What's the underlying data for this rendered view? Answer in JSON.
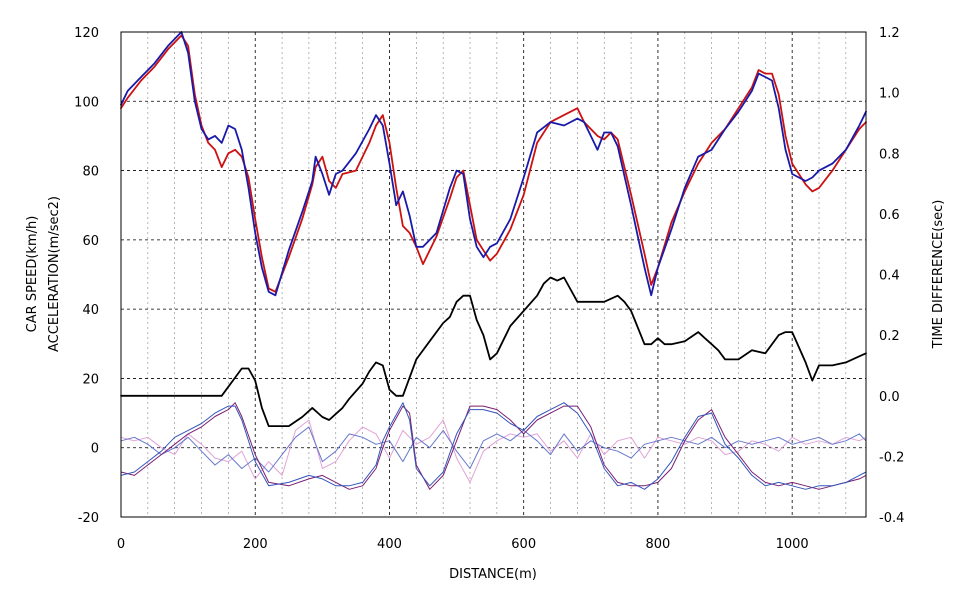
{
  "chart_data": {
    "type": "line",
    "xlabel": "DISTANCE(m)",
    "ylabel_left_line1": "CAR SPEED(km/h)",
    "ylabel_left_line2": "ACCELERATION(m/sec2)",
    "ylabel_right": "TIME DIFFERENCE(sec)",
    "xlim": [
      0,
      1110
    ],
    "ylim_left": [
      -20,
      120
    ],
    "ylim_right": [
      -0.4,
      1.2
    ],
    "x_ticks": [
      0,
      200,
      400,
      600,
      800,
      1000
    ],
    "x_tick_labels": [
      "0",
      "200",
      "400",
      "600",
      "800",
      "1000"
    ],
    "y_left_ticks": [
      -20,
      0,
      20,
      40,
      60,
      80,
      100,
      120
    ],
    "y_left_tick_labels": [
      "-20",
      "0",
      "20",
      "40",
      "60",
      "80",
      "100",
      "120"
    ],
    "y_right_ticks": [
      -0.4,
      -0.2,
      0.0,
      0.2,
      0.4,
      0.6,
      0.8,
      1.0,
      1.2
    ],
    "y_right_tick_labels": [
      "-0.4",
      "-0.2",
      "0.0",
      "0.2",
      "0.4",
      "0.6",
      "0.8",
      "1.0",
      "1.2"
    ],
    "grid": true,
    "legend": "none",
    "series": [
      {
        "color": "#cc1111",
        "axis": "left",
        "x": [
          0,
          10,
          30,
          50,
          70,
          90,
          100,
          110,
          120,
          130,
          140,
          150,
          160,
          170,
          180,
          190,
          200,
          210,
          220,
          230,
          250,
          270,
          285,
          290,
          300,
          310,
          320,
          330,
          350,
          370,
          380,
          390,
          400,
          410,
          420,
          430,
          440,
          450,
          470,
          490,
          500,
          510,
          520,
          530,
          540,
          550,
          560,
          580,
          600,
          620,
          640,
          660,
          680,
          690,
          700,
          710,
          720,
          730,
          740,
          760,
          780,
          790,
          800,
          820,
          840,
          860,
          880,
          900,
          920,
          940,
          950,
          960,
          970,
          980,
          990,
          1000,
          1010,
          1020,
          1030,
          1040,
          1060,
          1080,
          1100,
          1110
        ],
        "values": [
          98,
          101,
          106,
          110,
          115,
          119,
          116,
          102,
          93,
          88,
          86,
          81,
          85,
          86,
          84,
          78,
          66,
          55,
          46,
          45,
          55,
          66,
          76,
          81,
          84,
          77,
          75,
          79,
          80,
          88,
          93,
          96,
          88,
          75,
          64,
          62,
          58,
          53,
          61,
          72,
          78,
          80,
          70,
          60,
          57,
          54,
          56,
          63,
          73,
          88,
          94,
          96,
          98,
          94,
          92,
          90,
          89,
          91,
          89,
          73,
          56,
          47,
          52,
          65,
          74,
          82,
          88,
          92,
          98,
          104,
          109,
          108,
          108,
          102,
          90,
          82,
          79,
          76,
          74,
          75,
          80,
          86,
          92,
          94
        ]
      },
      {
        "color": "#1a1aaa",
        "axis": "left",
        "x": [
          0,
          10,
          30,
          50,
          70,
          90,
          100,
          110,
          120,
          130,
          140,
          150,
          160,
          170,
          180,
          190,
          200,
          210,
          220,
          230,
          250,
          270,
          285,
          290,
          300,
          310,
          320,
          330,
          350,
          370,
          380,
          390,
          400,
          410,
          420,
          430,
          440,
          450,
          470,
          490,
          500,
          510,
          520,
          530,
          540,
          550,
          560,
          580,
          600,
          620,
          640,
          660,
          680,
          690,
          700,
          710,
          720,
          730,
          740,
          760,
          780,
          790,
          800,
          820,
          840,
          860,
          880,
          900,
          920,
          940,
          950,
          960,
          970,
          980,
          990,
          1000,
          1010,
          1020,
          1030,
          1040,
          1060,
          1080,
          1100,
          1110
        ],
        "values": [
          99,
          103,
          107,
          111,
          116,
          120,
          114,
          100,
          92,
          89,
          90,
          88,
          93,
          92,
          86,
          75,
          62,
          52,
          45,
          44,
          57,
          68,
          77,
          84,
          79,
          73,
          79,
          80,
          85,
          92,
          96,
          93,
          82,
          70,
          74,
          67,
          58,
          58,
          62,
          75,
          80,
          79,
          66,
          58,
          55,
          58,
          59,
          66,
          78,
          91,
          94,
          93,
          95,
          94,
          90,
          86,
          91,
          91,
          87,
          70,
          52,
          44,
          52,
          63,
          75,
          84,
          86,
          92,
          97,
          103,
          108,
          107,
          106,
          98,
          86,
          79,
          78,
          77,
          78,
          80,
          82,
          86,
          93,
          97
        ]
      },
      {
        "color": "#000000",
        "axis": "right",
        "x": [
          0,
          20,
          50,
          100,
          140,
          150,
          160,
          170,
          180,
          190,
          200,
          210,
          220,
          250,
          270,
          285,
          300,
          310,
          320,
          330,
          340,
          360,
          370,
          380,
          390,
          400,
          410,
          420,
          430,
          440,
          460,
          480,
          490,
          500,
          510,
          520,
          530,
          540,
          550,
          560,
          580,
          600,
          620,
          630,
          640,
          650,
          660,
          680,
          700,
          720,
          740,
          750,
          760,
          780,
          790,
          800,
          810,
          820,
          840,
          860,
          870,
          880,
          890,
          900,
          920,
          940,
          960,
          980,
          990,
          1000,
          1010,
          1020,
          1030,
          1040,
          1060,
          1080,
          1100,
          1110
        ],
        "values": [
          0.0,
          0.0,
          0.0,
          0.0,
          0.0,
          0.0,
          0.03,
          0.06,
          0.09,
          0.09,
          0.05,
          -0.04,
          -0.1,
          -0.1,
          -0.07,
          -0.04,
          -0.07,
          -0.08,
          -0.06,
          -0.04,
          -0.01,
          0.04,
          0.08,
          0.11,
          0.1,
          0.02,
          0.0,
          0.0,
          0.06,
          0.12,
          0.18,
          0.24,
          0.26,
          0.31,
          0.33,
          0.33,
          0.25,
          0.2,
          0.12,
          0.14,
          0.23,
          0.28,
          0.33,
          0.37,
          0.39,
          0.38,
          0.39,
          0.31,
          0.31,
          0.31,
          0.33,
          0.31,
          0.28,
          0.17,
          0.17,
          0.19,
          0.17,
          0.17,
          0.18,
          0.21,
          0.19,
          0.17,
          0.15,
          0.12,
          0.12,
          0.15,
          0.14,
          0.2,
          0.21,
          0.21,
          0.16,
          0.11,
          0.05,
          0.1,
          0.1,
          0.11,
          0.13,
          0.14
        ]
      },
      {
        "color": "#7a1f70",
        "axis": "left",
        "x": [
          0,
          20,
          40,
          60,
          80,
          100,
          120,
          140,
          160,
          170,
          180,
          200,
          220,
          250,
          280,
          300,
          320,
          340,
          360,
          380,
          390,
          400,
          420,
          430,
          440,
          460,
          480,
          500,
          520,
          540,
          560,
          580,
          600,
          620,
          640,
          660,
          680,
          700,
          720,
          740,
          760,
          780,
          800,
          820,
          840,
          860,
          880,
          900,
          920,
          940,
          960,
          980,
          1000,
          1020,
          1040,
          1060,
          1080,
          1100,
          1110
        ],
        "values": [
          -7,
          -8,
          -5,
          -2,
          1,
          4,
          6,
          9,
          11,
          13,
          9,
          -2,
          -10,
          -11,
          -9,
          -8,
          -10,
          -12,
          -11,
          -6,
          0,
          5,
          12,
          10,
          -5,
          -12,
          -8,
          2,
          12,
          12,
          11,
          8,
          4,
          8,
          10,
          12,
          12,
          6,
          -5,
          -10,
          -11,
          -11,
          -10,
          -6,
          2,
          8,
          11,
          3,
          -2,
          -7,
          -10,
          -11,
          -10,
          -11,
          -12,
          -11,
          -10,
          -9,
          -8
        ]
      },
      {
        "color": "#3355bb",
        "axis": "left",
        "x": [
          0,
          20,
          40,
          60,
          80,
          100,
          120,
          140,
          160,
          170,
          180,
          200,
          220,
          250,
          280,
          300,
          320,
          340,
          360,
          380,
          390,
          400,
          420,
          430,
          440,
          460,
          480,
          500,
          520,
          540,
          560,
          580,
          600,
          620,
          640,
          660,
          680,
          700,
          720,
          740,
          760,
          780,
          800,
          820,
          840,
          860,
          880,
          900,
          920,
          940,
          960,
          980,
          1000,
          1020,
          1040,
          1060,
          1080,
          1100,
          1110
        ],
        "values": [
          -8,
          -7,
          -4,
          -1,
          3,
          5,
          7,
          10,
          12,
          12,
          8,
          -4,
          -11,
          -10,
          -8,
          -9,
          -11,
          -11,
          -10,
          -5,
          2,
          6,
          13,
          8,
          -6,
          -11,
          -7,
          4,
          11,
          11,
          10,
          7,
          5,
          9,
          11,
          13,
          10,
          4,
          -6,
          -11,
          -10,
          -12,
          -9,
          -4,
          3,
          9,
          10,
          1,
          -3,
          -8,
          -11,
          -10,
          -11,
          -12,
          -11,
          -11,
          -10,
          -8,
          -7
        ]
      },
      {
        "color": "#e2a2d6",
        "axis": "left",
        "x": [
          0,
          20,
          40,
          60,
          80,
          100,
          120,
          140,
          160,
          180,
          200,
          220,
          240,
          260,
          280,
          300,
          320,
          340,
          360,
          380,
          400,
          420,
          440,
          460,
          480,
          500,
          520,
          540,
          560,
          580,
          600,
          620,
          640,
          660,
          680,
          700,
          720,
          740,
          760,
          780,
          800,
          820,
          840,
          860,
          880,
          900,
          920,
          940,
          960,
          980,
          1000,
          1020,
          1040,
          1060,
          1080,
          1100,
          1110
        ],
        "values": [
          3,
          2,
          3,
          0,
          -2,
          4,
          1,
          -3,
          -4,
          -1,
          -9,
          -4,
          -8,
          5,
          8,
          -6,
          -4,
          2,
          6,
          4,
          -3,
          5,
          1,
          3,
          8,
          -3,
          -10,
          -1,
          2,
          4,
          3,
          4,
          -1,
          2,
          -3,
          4,
          -2,
          2,
          3,
          -3,
          3,
          2,
          1,
          3,
          2,
          -2,
          -1,
          2,
          1,
          -1,
          3,
          1,
          2,
          1,
          3,
          2,
          3
        ]
      },
      {
        "color": "#6677cc",
        "axis": "left",
        "x": [
          0,
          20,
          40,
          60,
          80,
          100,
          120,
          140,
          160,
          180,
          200,
          220,
          240,
          260,
          280,
          300,
          320,
          340,
          360,
          380,
          400,
          420,
          440,
          460,
          480,
          500,
          520,
          540,
          560,
          580,
          600,
          620,
          640,
          660,
          680,
          700,
          720,
          740,
          760,
          780,
          800,
          820,
          840,
          860,
          880,
          900,
          920,
          940,
          960,
          980,
          1000,
          1020,
          1040,
          1060,
          1080,
          1100,
          1110
        ],
        "values": [
          2,
          3,
          1,
          -2,
          0,
          3,
          -1,
          -5,
          -2,
          -6,
          -3,
          -7,
          -2,
          3,
          6,
          -4,
          -1,
          4,
          3,
          1,
          2,
          -4,
          3,
          0,
          5,
          -1,
          -6,
          2,
          4,
          2,
          5,
          2,
          -2,
          4,
          -1,
          2,
          0,
          -1,
          -3,
          1,
          2,
          3,
          2,
          1,
          3,
          0,
          2,
          1,
          2,
          3,
          1,
          2,
          3,
          1,
          2,
          4,
          2
        ]
      }
    ]
  }
}
